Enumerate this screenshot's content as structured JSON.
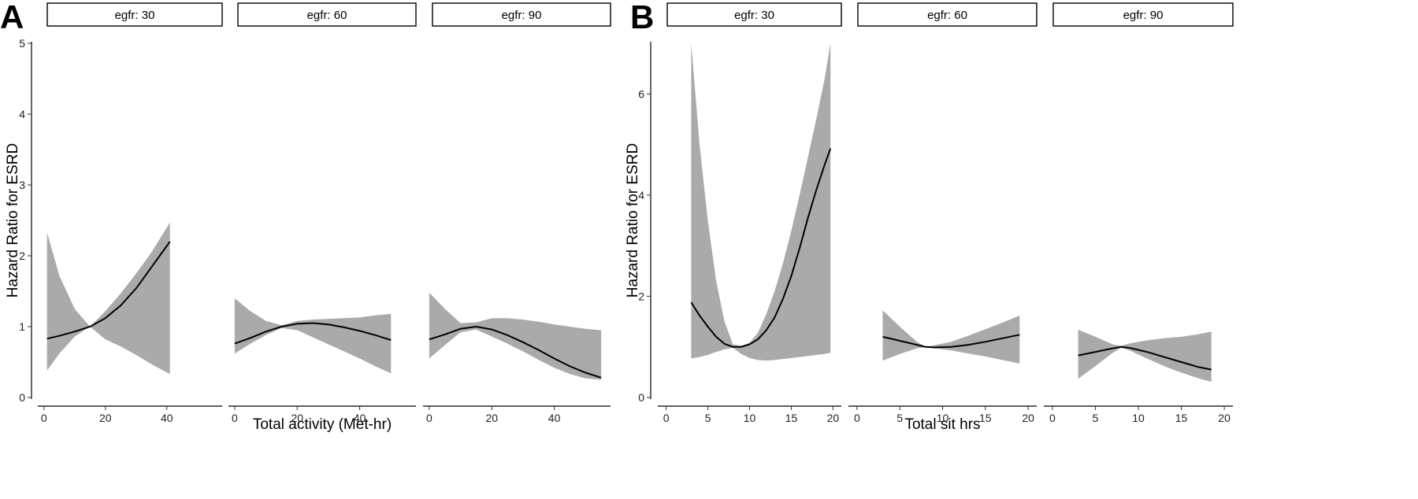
{
  "chart_data": [
    {
      "panel_label": "A",
      "type": "line",
      "xlabel": "Total activity (Met-hr)",
      "ylabel": "Hazard Ratio for ESRD",
      "ylim": [
        0,
        5
      ],
      "yticks": [
        0,
        1,
        2,
        3,
        4,
        5
      ],
      "xlim": [
        -2,
        58
      ],
      "xticks": [
        0,
        20,
        40
      ],
      "grid": false,
      "band_color": "#aaaaaa",
      "line_color": "#000000",
      "facets": [
        {
          "strip": "egfr: 30",
          "x": [
            1,
            5,
            10,
            15,
            20,
            25,
            30,
            35,
            41
          ],
          "y": [
            0.83,
            0.87,
            0.93,
            1.0,
            1.12,
            1.3,
            1.54,
            1.84,
            2.2
          ],
          "lower": [
            0.38,
            0.62,
            0.86,
            1.0,
            0.82,
            0.72,
            0.6,
            0.47,
            0.33
          ],
          "upper": [
            2.33,
            1.72,
            1.25,
            1.0,
            1.22,
            1.47,
            1.75,
            2.05,
            2.47
          ]
        },
        {
          "strip": "egfr: 60",
          "x": [
            0,
            5,
            10,
            15,
            20,
            25,
            30,
            35,
            40,
            45,
            50
          ],
          "y": [
            0.76,
            0.84,
            0.93,
            1.0,
            1.04,
            1.05,
            1.03,
            0.99,
            0.94,
            0.88,
            0.81
          ],
          "lower": [
            0.62,
            0.76,
            0.88,
            0.98,
            0.95,
            0.85,
            0.75,
            0.65,
            0.55,
            0.44,
            0.34
          ],
          "upper": [
            1.4,
            1.22,
            1.08,
            1.02,
            1.08,
            1.1,
            1.11,
            1.12,
            1.13,
            1.16,
            1.18
          ]
        },
        {
          "strip": "egfr: 90",
          "x": [
            0,
            5,
            10,
            15,
            20,
            25,
            30,
            35,
            40,
            45,
            50,
            55
          ],
          "y": [
            0.82,
            0.89,
            0.97,
            1.0,
            0.96,
            0.88,
            0.78,
            0.67,
            0.55,
            0.44,
            0.35,
            0.28
          ],
          "lower": [
            0.55,
            0.74,
            0.92,
            0.96,
            0.86,
            0.76,
            0.65,
            0.53,
            0.42,
            0.33,
            0.27,
            0.25
          ],
          "upper": [
            1.48,
            1.25,
            1.05,
            1.06,
            1.12,
            1.12,
            1.1,
            1.07,
            1.03,
            1.0,
            0.97,
            0.95
          ]
        }
      ]
    },
    {
      "panel_label": "B",
      "type": "line",
      "xlabel": "Total sit hrs",
      "ylabel": "Hazard Ratio for ESRD",
      "ylim": [
        0,
        7
      ],
      "yticks": [
        0,
        2,
        4,
        6
      ],
      "xlim": [
        -1,
        21
      ],
      "xticks": [
        0,
        5,
        10,
        15,
        20
      ],
      "grid": false,
      "band_color": "#aaaaaa",
      "line_color": "#000000",
      "facets": [
        {
          "strip": "egfr: 30",
          "x": [
            3,
            4,
            5,
            6,
            7,
            8,
            9,
            10,
            11,
            12,
            13,
            14,
            15,
            16,
            17,
            18,
            19,
            19.7
          ],
          "y": [
            1.88,
            1.62,
            1.4,
            1.2,
            1.06,
            1.0,
            1.0,
            1.05,
            1.15,
            1.33,
            1.58,
            1.95,
            2.4,
            2.95,
            3.55,
            4.1,
            4.6,
            4.92
          ],
          "lower": [
            0.77,
            0.8,
            0.84,
            0.9,
            0.95,
            0.98,
            0.86,
            0.78,
            0.74,
            0.73,
            0.74,
            0.76,
            0.78,
            0.8,
            0.82,
            0.84,
            0.86,
            0.88
          ],
          "upper": [
            7.0,
            5.0,
            3.5,
            2.3,
            1.5,
            1.05,
            1.02,
            1.08,
            1.28,
            1.65,
            2.1,
            2.65,
            3.3,
            4.0,
            4.75,
            5.5,
            6.3,
            7.0
          ]
        },
        {
          "strip": "egfr: 60",
          "x": [
            3,
            5,
            7,
            8,
            9,
            11,
            13,
            15,
            17,
            19
          ],
          "y": [
            1.2,
            1.12,
            1.04,
            1.0,
            0.99,
            1.0,
            1.04,
            1.1,
            1.17,
            1.24
          ],
          "lower": [
            0.73,
            0.86,
            0.97,
            1.0,
            0.97,
            0.93,
            0.87,
            0.81,
            0.74,
            0.67
          ],
          "upper": [
            1.72,
            1.4,
            1.1,
            1.0,
            1.03,
            1.1,
            1.22,
            1.35,
            1.48,
            1.62
          ]
        },
        {
          "strip": "egfr: 90",
          "x": [
            3,
            5,
            7,
            8,
            9,
            11,
            13,
            15,
            17,
            18.5
          ],
          "y": [
            0.83,
            0.9,
            0.97,
            1.0,
            0.98,
            0.9,
            0.8,
            0.7,
            0.6,
            0.55
          ],
          "lower": [
            0.37,
            0.62,
            0.88,
            0.98,
            0.93,
            0.77,
            0.62,
            0.49,
            0.38,
            0.31
          ],
          "upper": [
            1.34,
            1.2,
            1.05,
            1.02,
            1.07,
            1.13,
            1.17,
            1.2,
            1.25,
            1.3
          ]
        }
      ]
    }
  ]
}
